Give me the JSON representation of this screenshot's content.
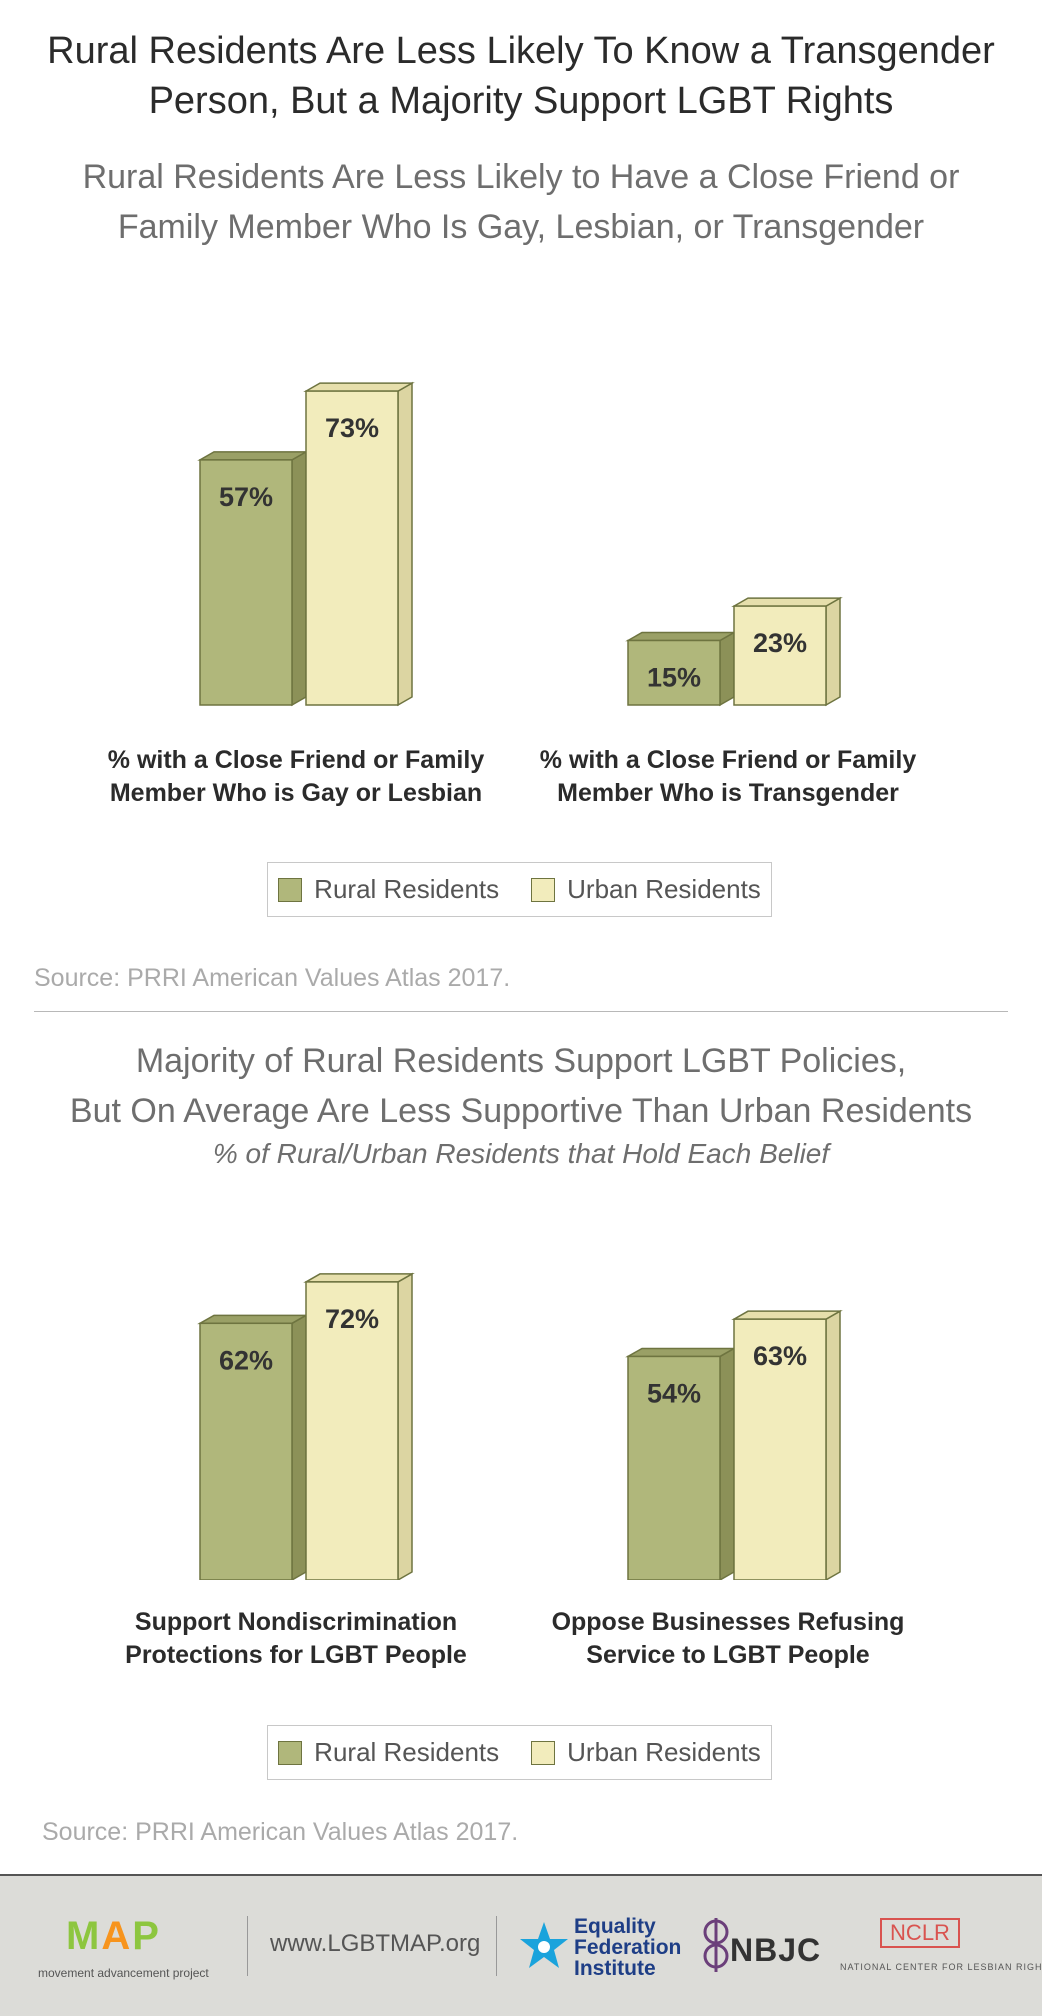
{
  "title": "Rural Residents Are Less Likely To Know a Transgender\nPerson, But a Majority Support LGBT Rights",
  "colors": {
    "rural": "#b0b77b",
    "rural_side": "#8c9158",
    "rural_top": "#9aa066",
    "urban": "#f2ecbc",
    "urban_side": "#dcd5a2",
    "urban_top": "#e6dfac",
    "stroke": "#6e7440"
  },
  "chart_data": [
    {
      "type": "bar",
      "title": "Rural Residents Are Less Likely to Have a Close Friend or\nFamily Member Who Is Gay, Lesbian, or Transgender",
      "subtitle": "",
      "categories": [
        "% with a Close Friend or Family\nMember Who is Gay or Lesbian",
        "% with a Close Friend or Family\nMember Who is Transgender"
      ],
      "series": [
        {
          "name": "Rural Residents",
          "values": [
            57,
            15
          ],
          "labels": [
            "57%",
            "15%"
          ]
        },
        {
          "name": "Urban Residents",
          "values": [
            73,
            23
          ],
          "labels": [
            "73%",
            "23%"
          ]
        }
      ],
      "ylim": [
        0,
        100
      ],
      "legend": "bottom",
      "grid": false,
      "source": "Source: PRRI American Values Atlas 2017."
    },
    {
      "type": "bar",
      "title": "Majority of Rural Residents Support LGBT Policies,\nBut On Average Are Less Supportive Than Urban Residents",
      "subtitle": "% of Rural/Urban Residents that Hold Each Belief",
      "categories": [
        "Support Nondiscrimination\nProtections for LGBT People",
        "Oppose Businesses Refusing\nService to LGBT People"
      ],
      "series": [
        {
          "name": "Rural Residents",
          "values": [
            62,
            54
          ],
          "labels": [
            "62%",
            "54%"
          ]
        },
        {
          "name": "Urban Residents",
          "values": [
            72,
            63
          ],
          "labels": [
            "72%",
            "63%"
          ]
        }
      ],
      "ylim": [
        0,
        100
      ],
      "legend": "bottom",
      "grid": false,
      "source": "Source: PRRI American Values Atlas 2017."
    }
  ],
  "footer": {
    "map_logo": "MAP",
    "map_tagline": "movement advancement project",
    "url": "www.LGBTMAP.org",
    "efi": "Equality\nFederation\nInstitute",
    "nbjc": "NBJC",
    "nclr": "NCLR",
    "nclr_tagline": "NATIONAL CENTER FOR LESBIAN RIGHTS"
  },
  "icons": [
    "star-icon",
    "nbjc-emblem-icon"
  ]
}
